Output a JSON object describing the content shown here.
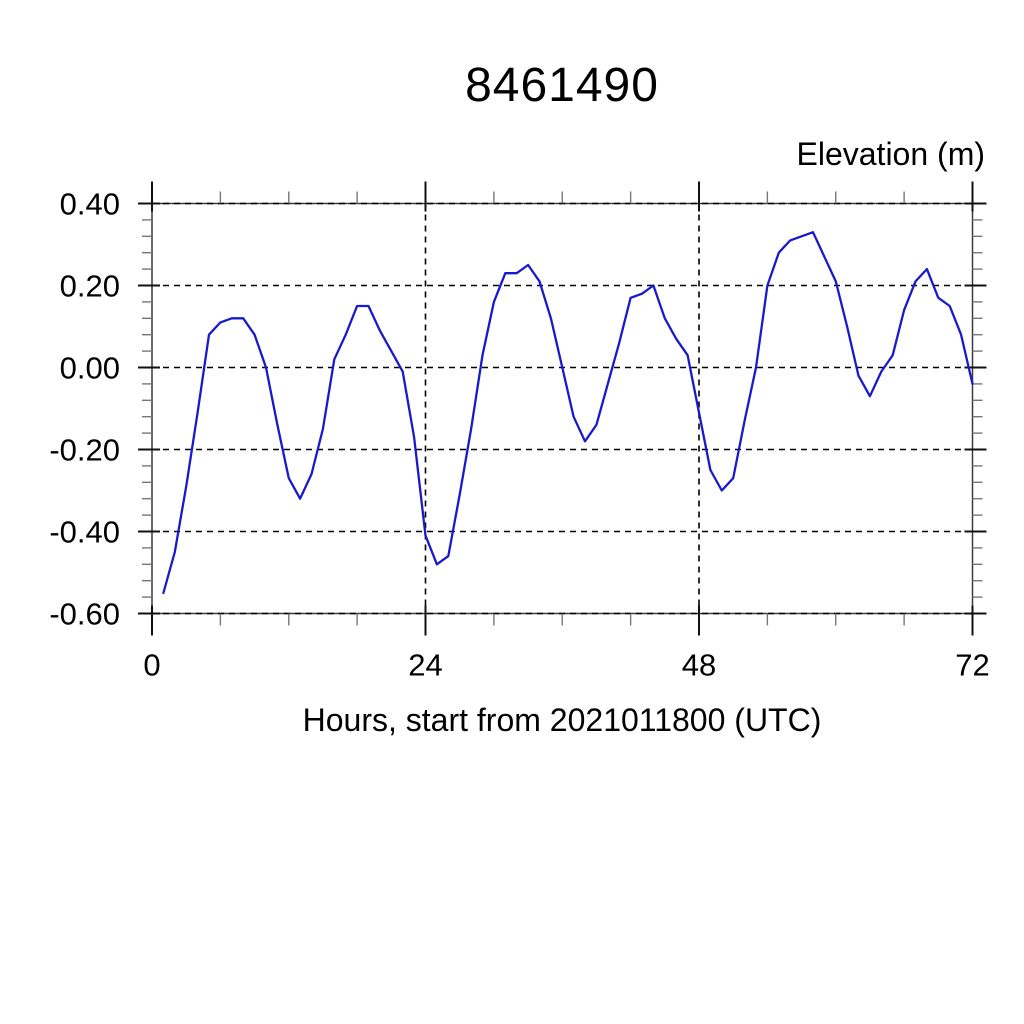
{
  "figure": {
    "title": "8461490",
    "y_axis_title": "Elevation (m)",
    "x_axis_label": "Hours, start from 2021011800 (UTC)"
  },
  "chart_data": {
    "type": "line",
    "title": "8461490",
    "ylabel": "Elevation (m)",
    "xlabel": "Hours, start from 2021011800 (UTC)",
    "xlim": [
      0,
      72
    ],
    "ylim": [
      -0.6,
      0.4
    ],
    "x_ticks": [
      0,
      24,
      48,
      72
    ],
    "x_tick_labels": [
      "0",
      "24",
      "48",
      "72"
    ],
    "y_ticks": [
      0.4,
      0.2,
      0.0,
      -0.2,
      -0.4,
      -0.6
    ],
    "y_tick_labels": [
      "0.40",
      "0.20",
      "0.00",
      "-0.20",
      "-0.40",
      "-0.60"
    ],
    "x_minor_step": 6,
    "y_minor_step": 0.04,
    "grid": "dashed at major ticks",
    "legend": "none",
    "line_color": "#1a1acd",
    "series": [
      {
        "name": "elevation",
        "x": [
          1,
          2,
          3,
          4,
          5,
          6,
          7,
          8,
          9,
          10,
          11,
          12,
          13,
          14,
          15,
          16,
          17,
          18,
          19,
          20,
          21,
          22,
          23,
          24,
          25,
          26,
          27,
          28,
          29,
          30,
          31,
          32,
          33,
          34,
          35,
          36,
          37,
          38,
          39,
          40,
          41,
          42,
          43,
          44,
          45,
          46,
          47,
          48,
          49,
          50,
          51,
          52,
          53,
          54,
          55,
          56,
          57,
          58,
          59,
          60,
          61,
          62,
          63,
          64,
          65,
          66,
          67,
          68,
          69,
          70,
          71,
          72
        ],
        "y": [
          -0.55,
          -0.45,
          -0.29,
          -0.11,
          0.08,
          0.11,
          0.12,
          0.12,
          0.08,
          0.0,
          -0.14,
          -0.27,
          -0.32,
          -0.26,
          -0.15,
          0.02,
          0.08,
          0.15,
          0.15,
          0.09,
          0.04,
          -0.01,
          -0.17,
          -0.41,
          -0.48,
          -0.46,
          -0.31,
          -0.15,
          0.03,
          0.16,
          0.23,
          0.23,
          0.25,
          0.21,
          0.12,
          0.0,
          -0.12,
          -0.18,
          -0.14,
          -0.04,
          0.06,
          0.17,
          0.18,
          0.2,
          0.12,
          0.07,
          0.03,
          -0.11,
          -0.25,
          -0.3,
          -0.27,
          -0.13,
          0.0,
          0.2,
          0.28,
          0.31,
          0.32,
          0.33,
          0.27,
          0.21,
          0.1,
          -0.02,
          -0.07,
          -0.01,
          0.03,
          0.14,
          0.21,
          0.24,
          0.17,
          0.15,
          0.08,
          -0.04
        ]
      }
    ]
  }
}
